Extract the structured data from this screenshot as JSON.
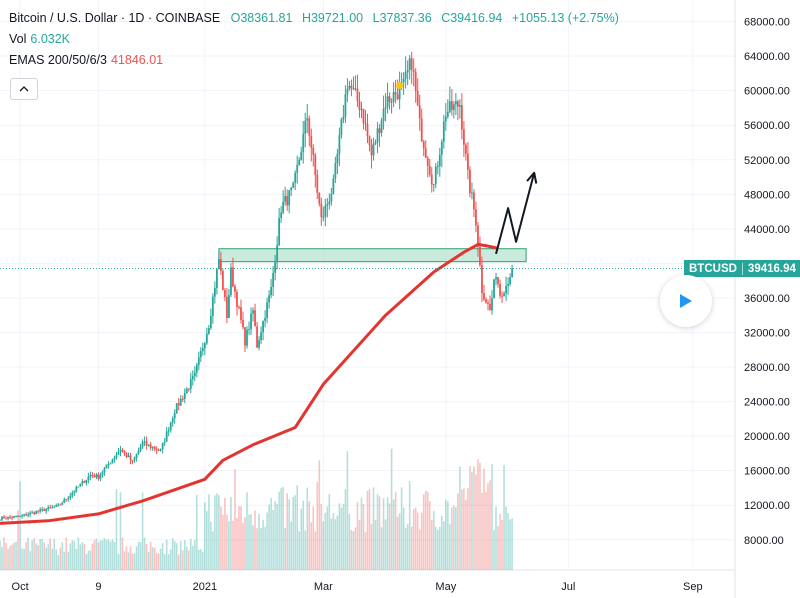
{
  "header": {
    "symbol_title": "Bitcoin / U.S. Dollar · 1D · COINBASE",
    "o_label": "O",
    "o_value": "38361.81",
    "h_label": "H",
    "h_value": "39721.00",
    "l_label": "L",
    "l_value": "37837.36",
    "c_label": "C",
    "c_value": "39416.94",
    "change": "+1055.13 (+2.75%)",
    "vol_label": "Vol",
    "vol_value": "6.032K",
    "ema_label": "EMAS 200/50/6/3",
    "ema_value": "41846.01"
  },
  "price_tag": {
    "symbol": "BTCUSD",
    "value": "39416.94"
  },
  "icons": {
    "collapse": "chevron-up-icon",
    "play": "play-icon"
  },
  "colors": {
    "up": "#26a69a",
    "down": "#ef5350",
    "ema": "#e3342f",
    "zone": "#b7e4d3",
    "accent": "#2196f3",
    "marker": "#f5c518"
  },
  "chart_data": {
    "type": "candlestick",
    "title": "Bitcoin / U.S. Dollar · 1D · COINBASE",
    "y_axis": {
      "ticks": [
        8000,
        12000,
        16000,
        20000,
        24000,
        28000,
        32000,
        36000,
        40000,
        44000,
        48000,
        52000,
        56000,
        60000,
        64000,
        68000
      ],
      "tick_labels": [
        "8000.00",
        "12000.00",
        "16000.00",
        "20000.00",
        "24000.00",
        "28000.00",
        "32000.00",
        "36000.00",
        "40000.00",
        "44000.00",
        "48000.00",
        "52000.00",
        "56000.00",
        "60000.00",
        "64000.00",
        "68000.00"
      ],
      "range": [
        4500,
        70500
      ],
      "position": "right"
    },
    "x_axis": {
      "ticks": [
        "Oct",
        "9",
        "2021",
        "Mar",
        "May",
        "Jul",
        "Sep"
      ],
      "tick_dates": [
        "2020-10-01",
        "2020-11-09",
        "2021-01-01",
        "2021-03-01",
        "2021-05-01",
        "2021-07-01",
        "2021-09-01"
      ],
      "range": [
        "2020-09-21",
        "2021-09-22"
      ]
    },
    "price_path": [
      [
        "2020-09-21",
        10500
      ],
      [
        "2020-10-01",
        10700
      ],
      [
        "2020-10-10",
        11300
      ],
      [
        "2020-10-20",
        11900
      ],
      [
        "2020-10-25",
        13000
      ],
      [
        "2020-11-05",
        15500
      ],
      [
        "2020-11-09",
        15300
      ],
      [
        "2020-11-20",
        18500
      ],
      [
        "2020-11-26",
        17000
      ],
      [
        "2020-12-01",
        19200
      ],
      [
        "2020-12-10",
        18300
      ],
      [
        "2020-12-17",
        23000
      ],
      [
        "2020-12-27",
        27000
      ],
      [
        "2021-01-03",
        33000
      ],
      [
        "2021-01-08",
        40500
      ],
      [
        "2021-01-12",
        34000
      ],
      [
        "2021-01-14",
        39000
      ],
      [
        "2021-01-21",
        31000
      ],
      [
        "2021-01-25",
        34500
      ],
      [
        "2021-01-27",
        30500
      ],
      [
        "2021-02-03",
        37000
      ],
      [
        "2021-02-08",
        46500
      ],
      [
        "2021-02-14",
        48500
      ],
      [
        "2021-02-21",
        57000
      ],
      [
        "2021-02-28",
        45000
      ],
      [
        "2021-03-06",
        49000
      ],
      [
        "2021-03-13",
        61000
      ],
      [
        "2021-03-20",
        58000
      ],
      [
        "2021-03-25",
        52500
      ],
      [
        "2021-04-01",
        58700
      ],
      [
        "2021-04-10",
        60500
      ],
      [
        "2021-04-14",
        63500
      ],
      [
        "2021-04-18",
        56000
      ],
      [
        "2021-04-25",
        49000
      ],
      [
        "2021-05-01",
        57500
      ],
      [
        "2021-05-08",
        58500
      ],
      [
        "2021-05-12",
        50000
      ],
      [
        "2021-05-16",
        45000
      ],
      [
        "2021-05-19",
        37000
      ],
      [
        "2021-05-23",
        34500
      ],
      [
        "2021-05-26",
        39000
      ],
      [
        "2021-05-28",
        36500
      ],
      [
        "2021-05-31",
        37500
      ],
      [
        "2021-06-03",
        39400
      ]
    ],
    "ema_200": [
      [
        "2020-09-21",
        9900
      ],
      [
        "2020-10-15",
        10200
      ],
      [
        "2020-11-09",
        11000
      ],
      [
        "2020-12-01",
        12500
      ],
      [
        "2021-01-01",
        15000
      ],
      [
        "2021-01-10",
        17200
      ],
      [
        "2021-01-25",
        19000
      ],
      [
        "2021-02-15",
        21000
      ],
      [
        "2021-03-01",
        26000
      ],
      [
        "2021-04-01",
        34000
      ],
      [
        "2021-04-25",
        39000
      ],
      [
        "2021-05-10",
        41300
      ],
      [
        "2021-05-17",
        42200
      ],
      [
        "2021-05-22",
        42000
      ],
      [
        "2021-05-26",
        41800
      ]
    ],
    "resistance_zone": {
      "from": "2021-01-08",
      "to": "2021-06-10",
      "y_low": 40200,
      "y_high": 41700
    },
    "projection": [
      [
        "2021-05-26",
        41100
      ],
      [
        "2021-06-01",
        46400
      ],
      [
        "2021-06-05",
        42500
      ],
      [
        "2021-06-14",
        50500
      ]
    ],
    "marker": {
      "date": "2021-04-08",
      "value": 60600
    },
    "volume_axis_max": 24000,
    "last_price": 39416.94
  }
}
